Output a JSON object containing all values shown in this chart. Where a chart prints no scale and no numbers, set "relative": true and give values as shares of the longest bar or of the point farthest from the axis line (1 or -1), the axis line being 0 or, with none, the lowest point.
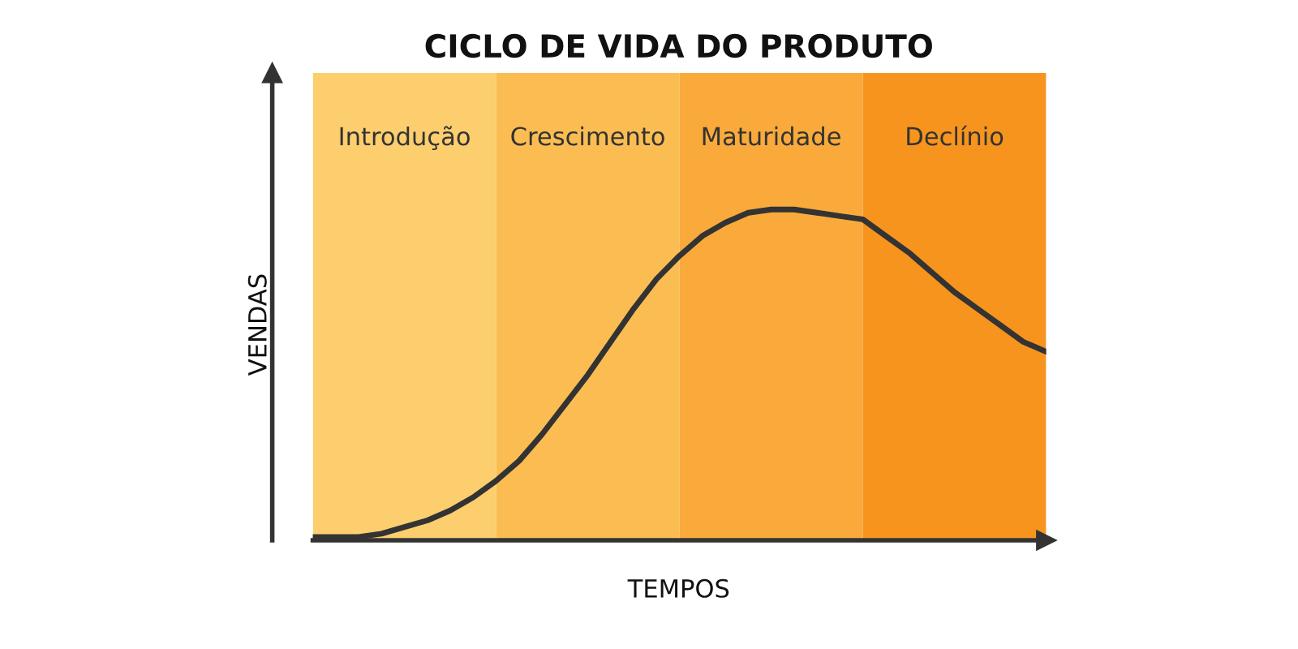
{
  "chart_data": {
    "type": "line",
    "title": "CICLO DE VIDA DO PRODUTO",
    "xlabel": "TEMPOS",
    "ylabel": "VENDAS",
    "relative": true,
    "marker": "none",
    "line_style": "solid",
    "categories": [
      null,
      null,
      null,
      null,
      null,
      null,
      null,
      null,
      null,
      null,
      null,
      null,
      null,
      null,
      null,
      null,
      null,
      null,
      null,
      null,
      null,
      null,
      null,
      null,
      null,
      null,
      null,
      null,
      null,
      null,
      null,
      null,
      null
    ],
    "series": [
      {
        "color": "#333333",
        "values": [
          0.01,
          0.01,
          0.01,
          0.02,
          0.04,
          0.06,
          0.09,
          0.13,
          0.18,
          0.24,
          0.32,
          0.41,
          0.5,
          0.6,
          0.7,
          0.79,
          0.86,
          0.92,
          0.96,
          0.99,
          1.0,
          1.0,
          0.99,
          0.98,
          0.97,
          0.92,
          0.87,
          0.81,
          0.75,
          0.7,
          0.65,
          0.6,
          0.57
        ]
      }
    ],
    "annotations": [
      "Introdução",
      "Crescimento",
      "Maturidade",
      "Declínio"
    ]
  }
}
